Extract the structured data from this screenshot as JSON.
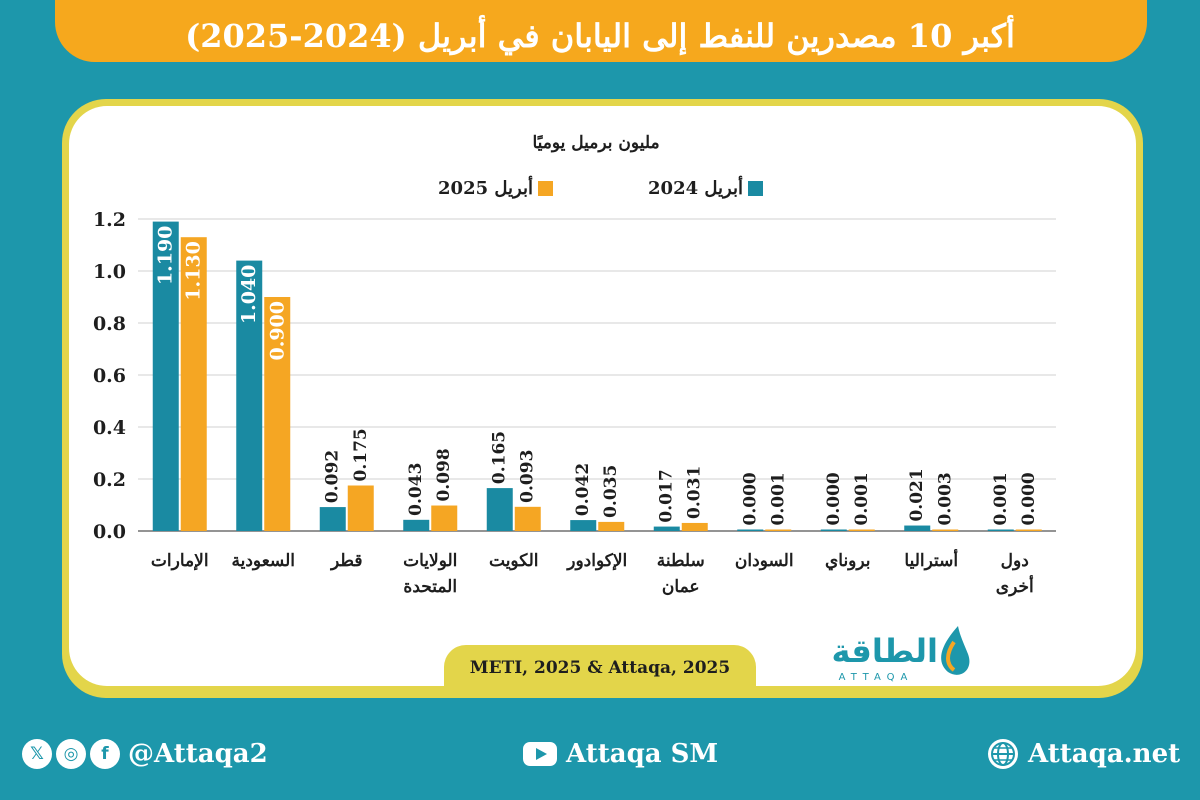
{
  "header": {
    "title": "أكبر 10 مصدرين للنفط إلى اليابان في أبريل (2024-2025)"
  },
  "chart_data": {
    "type": "bar",
    "title": "أكبر 10 مصدرين للنفط إلى اليابان في أبريل (2024-2025)",
    "unit_label": "مليون برميل يوميًا",
    "categories": [
      "الإمارات",
      "السعودية",
      "قطر",
      "الولايات المتحدة",
      "الكويت",
      "الإكوادور",
      "سلطنة عمان",
      "السودان",
      "بروناي",
      "أستراليا",
      "دول أخرى"
    ],
    "category_lines": [
      [
        "الإمارات"
      ],
      [
        "السعودية"
      ],
      [
        "قطر"
      ],
      [
        "الولايات",
        "المتحدة"
      ],
      [
        "الكويت"
      ],
      [
        "الإكوادور"
      ],
      [
        "سلطنة",
        "عمان"
      ],
      [
        "السودان"
      ],
      [
        "بروناي"
      ],
      [
        "أستراليا"
      ],
      [
        "دول",
        "أخرى"
      ]
    ],
    "series": [
      {
        "name": "أبريل 2024",
        "color": "#1a8aa2",
        "values": [
          1.19,
          1.04,
          0.092,
          0.043,
          0.165,
          0.042,
          0.017,
          0.0,
          0.0,
          0.021,
          0.001
        ],
        "labels": [
          "1.190",
          "1.040",
          "0.092",
          "0.043",
          "0.165",
          "0.042",
          "0.017",
          "0.000",
          "0.000",
          "0.021",
          "0.001"
        ]
      },
      {
        "name": "أبريل 2025",
        "color": "#f5a623",
        "values": [
          1.13,
          0.9,
          0.175,
          0.098,
          0.093,
          0.035,
          0.031,
          0.001,
          0.001,
          0.003,
          0.0
        ],
        "labels": [
          "1.130",
          "0.900",
          "0.175",
          "0.098",
          "0.093",
          "0.035",
          "0.031",
          "0.001",
          "0.001",
          "0.003",
          "0.000"
        ]
      }
    ],
    "ylim": [
      0,
      1.2
    ],
    "yticks": [
      "0.0",
      "0.2",
      "0.4",
      "0.6",
      "0.8",
      "1.0",
      "1.2"
    ],
    "grid": true,
    "legend_position": "top-center"
  },
  "source": {
    "text": "METI, 2025 & Attaqa, 2025"
  },
  "brand": {
    "logo_text": "الطاقة",
    "logo_latin": "ATTAQA"
  },
  "footer": {
    "social_handle": "@Attaqa2",
    "youtube_handle": "Attaqa SM",
    "website": "Attaqa.net",
    "icons": [
      "x-icon",
      "instagram-icon",
      "facebook-icon",
      "youtube-icon",
      "globe-icon"
    ]
  }
}
